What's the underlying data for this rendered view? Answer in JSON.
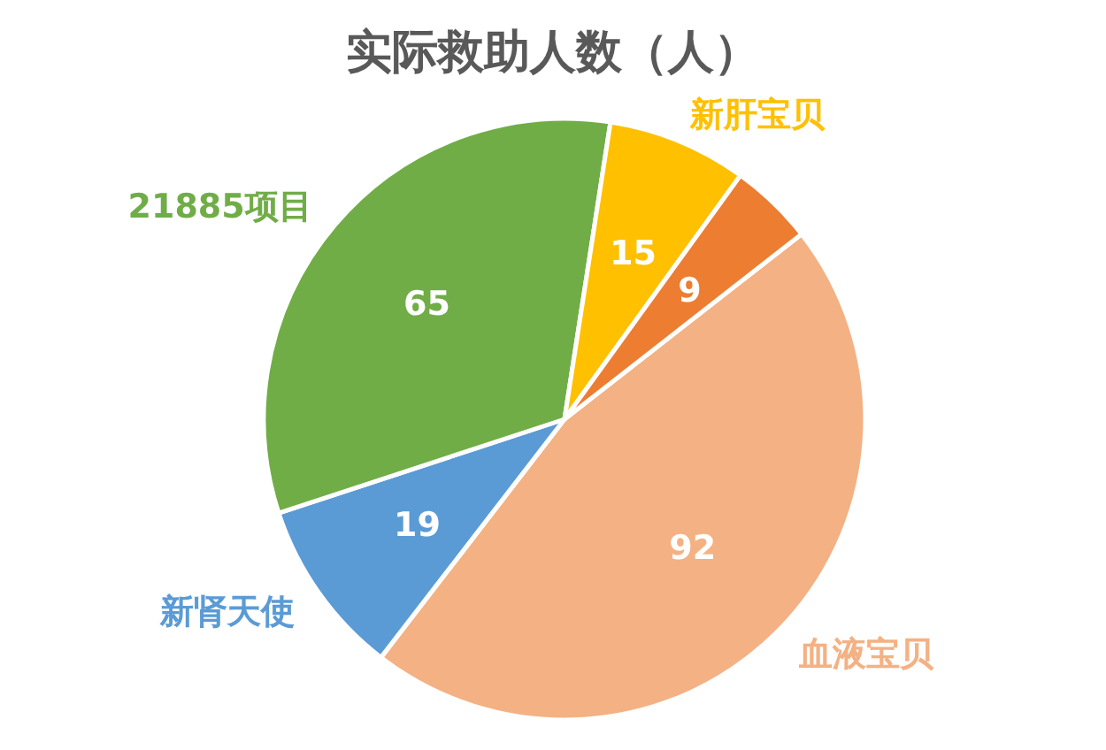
{
  "chart_data": {
    "type": "pie",
    "title": "实际救助人数（人）",
    "categories": [
      "血液宝贝",
      "新肾天使",
      "21885项目",
      "新肝宝贝",
      null
    ],
    "values": [
      92,
      19,
      65,
      15,
      9
    ],
    "colors": [
      "#f4b183",
      "#5b9bd5",
      "#70ad47",
      "#ffc000",
      "#ed7d31"
    ],
    "data_labels": true
  }
}
